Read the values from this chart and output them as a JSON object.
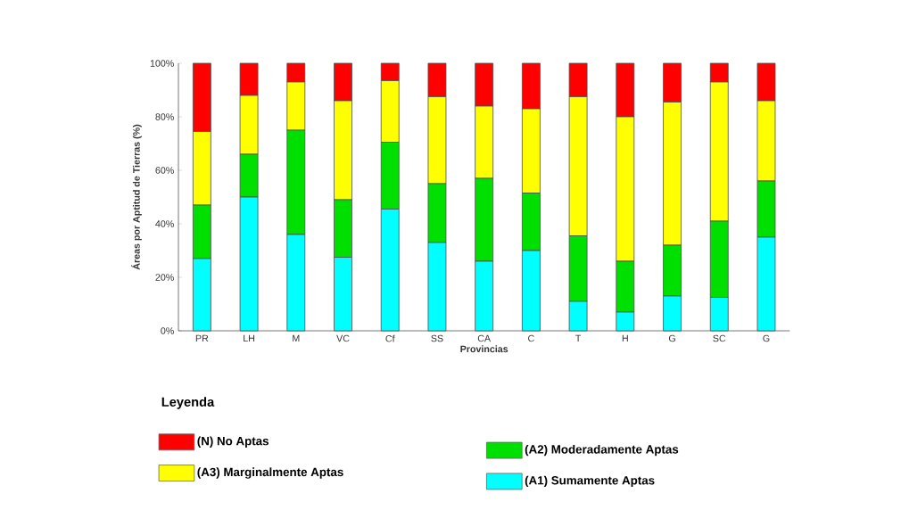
{
  "chart_data": {
    "type": "bar",
    "stacked": true,
    "xlabel": "Provincias",
    "ylabel": "Áreas por Aptitud de Tierras (%)",
    "legend_title": "Leyenda",
    "legend": "bottom",
    "categories": [
      "PR",
      "LH",
      "M",
      "VC",
      "Cf",
      "SS",
      "CA",
      "C",
      "T",
      "H",
      "G",
      "SC",
      "G"
    ],
    "ylim": [
      0,
      100
    ],
    "yticks": [
      {
        "value": 0,
        "label": "0%"
      },
      {
        "value": 20,
        "label": "20%"
      },
      {
        "value": 40,
        "label": "40%"
      },
      {
        "value": 60,
        "label": "60%"
      },
      {
        "value": 80,
        "label": "80%"
      },
      {
        "value": 100,
        "label": "100%"
      }
    ],
    "series": [
      {
        "name": "(A1) Sumamente Aptas",
        "color": "#00ffff",
        "values": [
          27,
          50,
          36,
          27.5,
          45.5,
          33,
          26,
          30,
          11,
          7,
          13,
          12.5,
          35
        ]
      },
      {
        "name": "(A2) Moderadamente Aptas",
        "color": "#00e000",
        "values": [
          20,
          16,
          39,
          21.5,
          25,
          22,
          31,
          21.5,
          24.5,
          19,
          19,
          28.5,
          21
        ]
      },
      {
        "name": "(A3) Marginalmente Aptas",
        "color": "#ffff00",
        "values": [
          27.5,
          22,
          18,
          37,
          23,
          32.5,
          27,
          31.5,
          52,
          54,
          53.5,
          52,
          30
        ]
      },
      {
        "name": "(N) No Aptas",
        "color": "#ff0000",
        "values": [
          25.5,
          12,
          7,
          14,
          6.5,
          12.5,
          16,
          17,
          12.5,
          20,
          14.5,
          7,
          14
        ]
      }
    ]
  }
}
